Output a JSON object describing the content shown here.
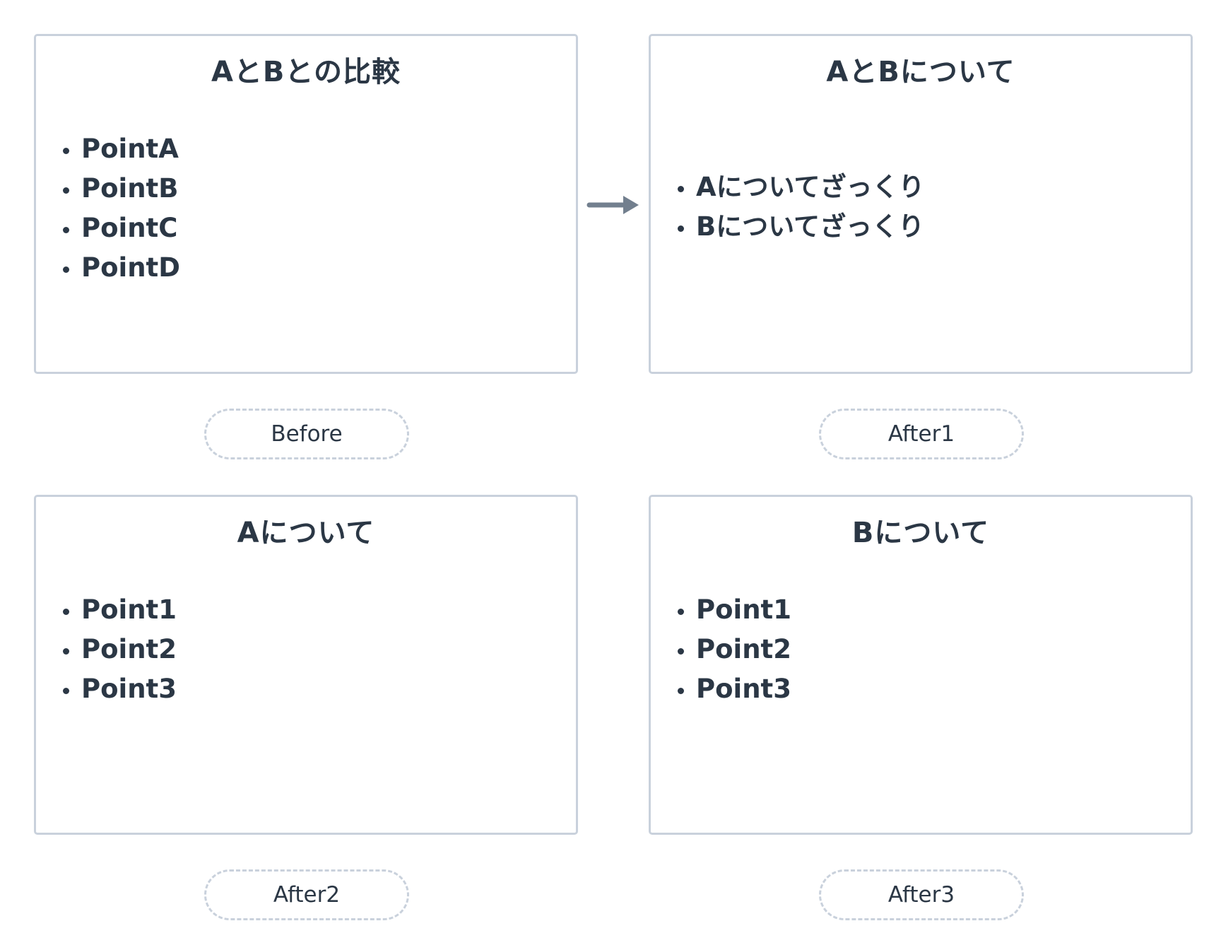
{
  "panels": {
    "before": {
      "title": "AとBとの比較",
      "items": [
        "PointA",
        "PointB",
        "PointC",
        "PointD"
      ],
      "tag": "Before"
    },
    "after1": {
      "title": "AとBについて",
      "items": [
        "Aについてざっくり",
        "Bについてざっくり"
      ],
      "tag": "After1"
    },
    "after2": {
      "title": "Aについて",
      "items": [
        "Point1",
        "Point2",
        "Point3"
      ],
      "tag": "After2"
    },
    "after3": {
      "title": "Bについて",
      "items": [
        "Point1",
        "Point2",
        "Point3"
      ],
      "tag": "After3"
    }
  },
  "colors": {
    "text": "#2b3745",
    "border": "#c9d1dc",
    "arrow": "#727f8e"
  },
  "icons": {
    "transition": "arrow-right-icon"
  }
}
